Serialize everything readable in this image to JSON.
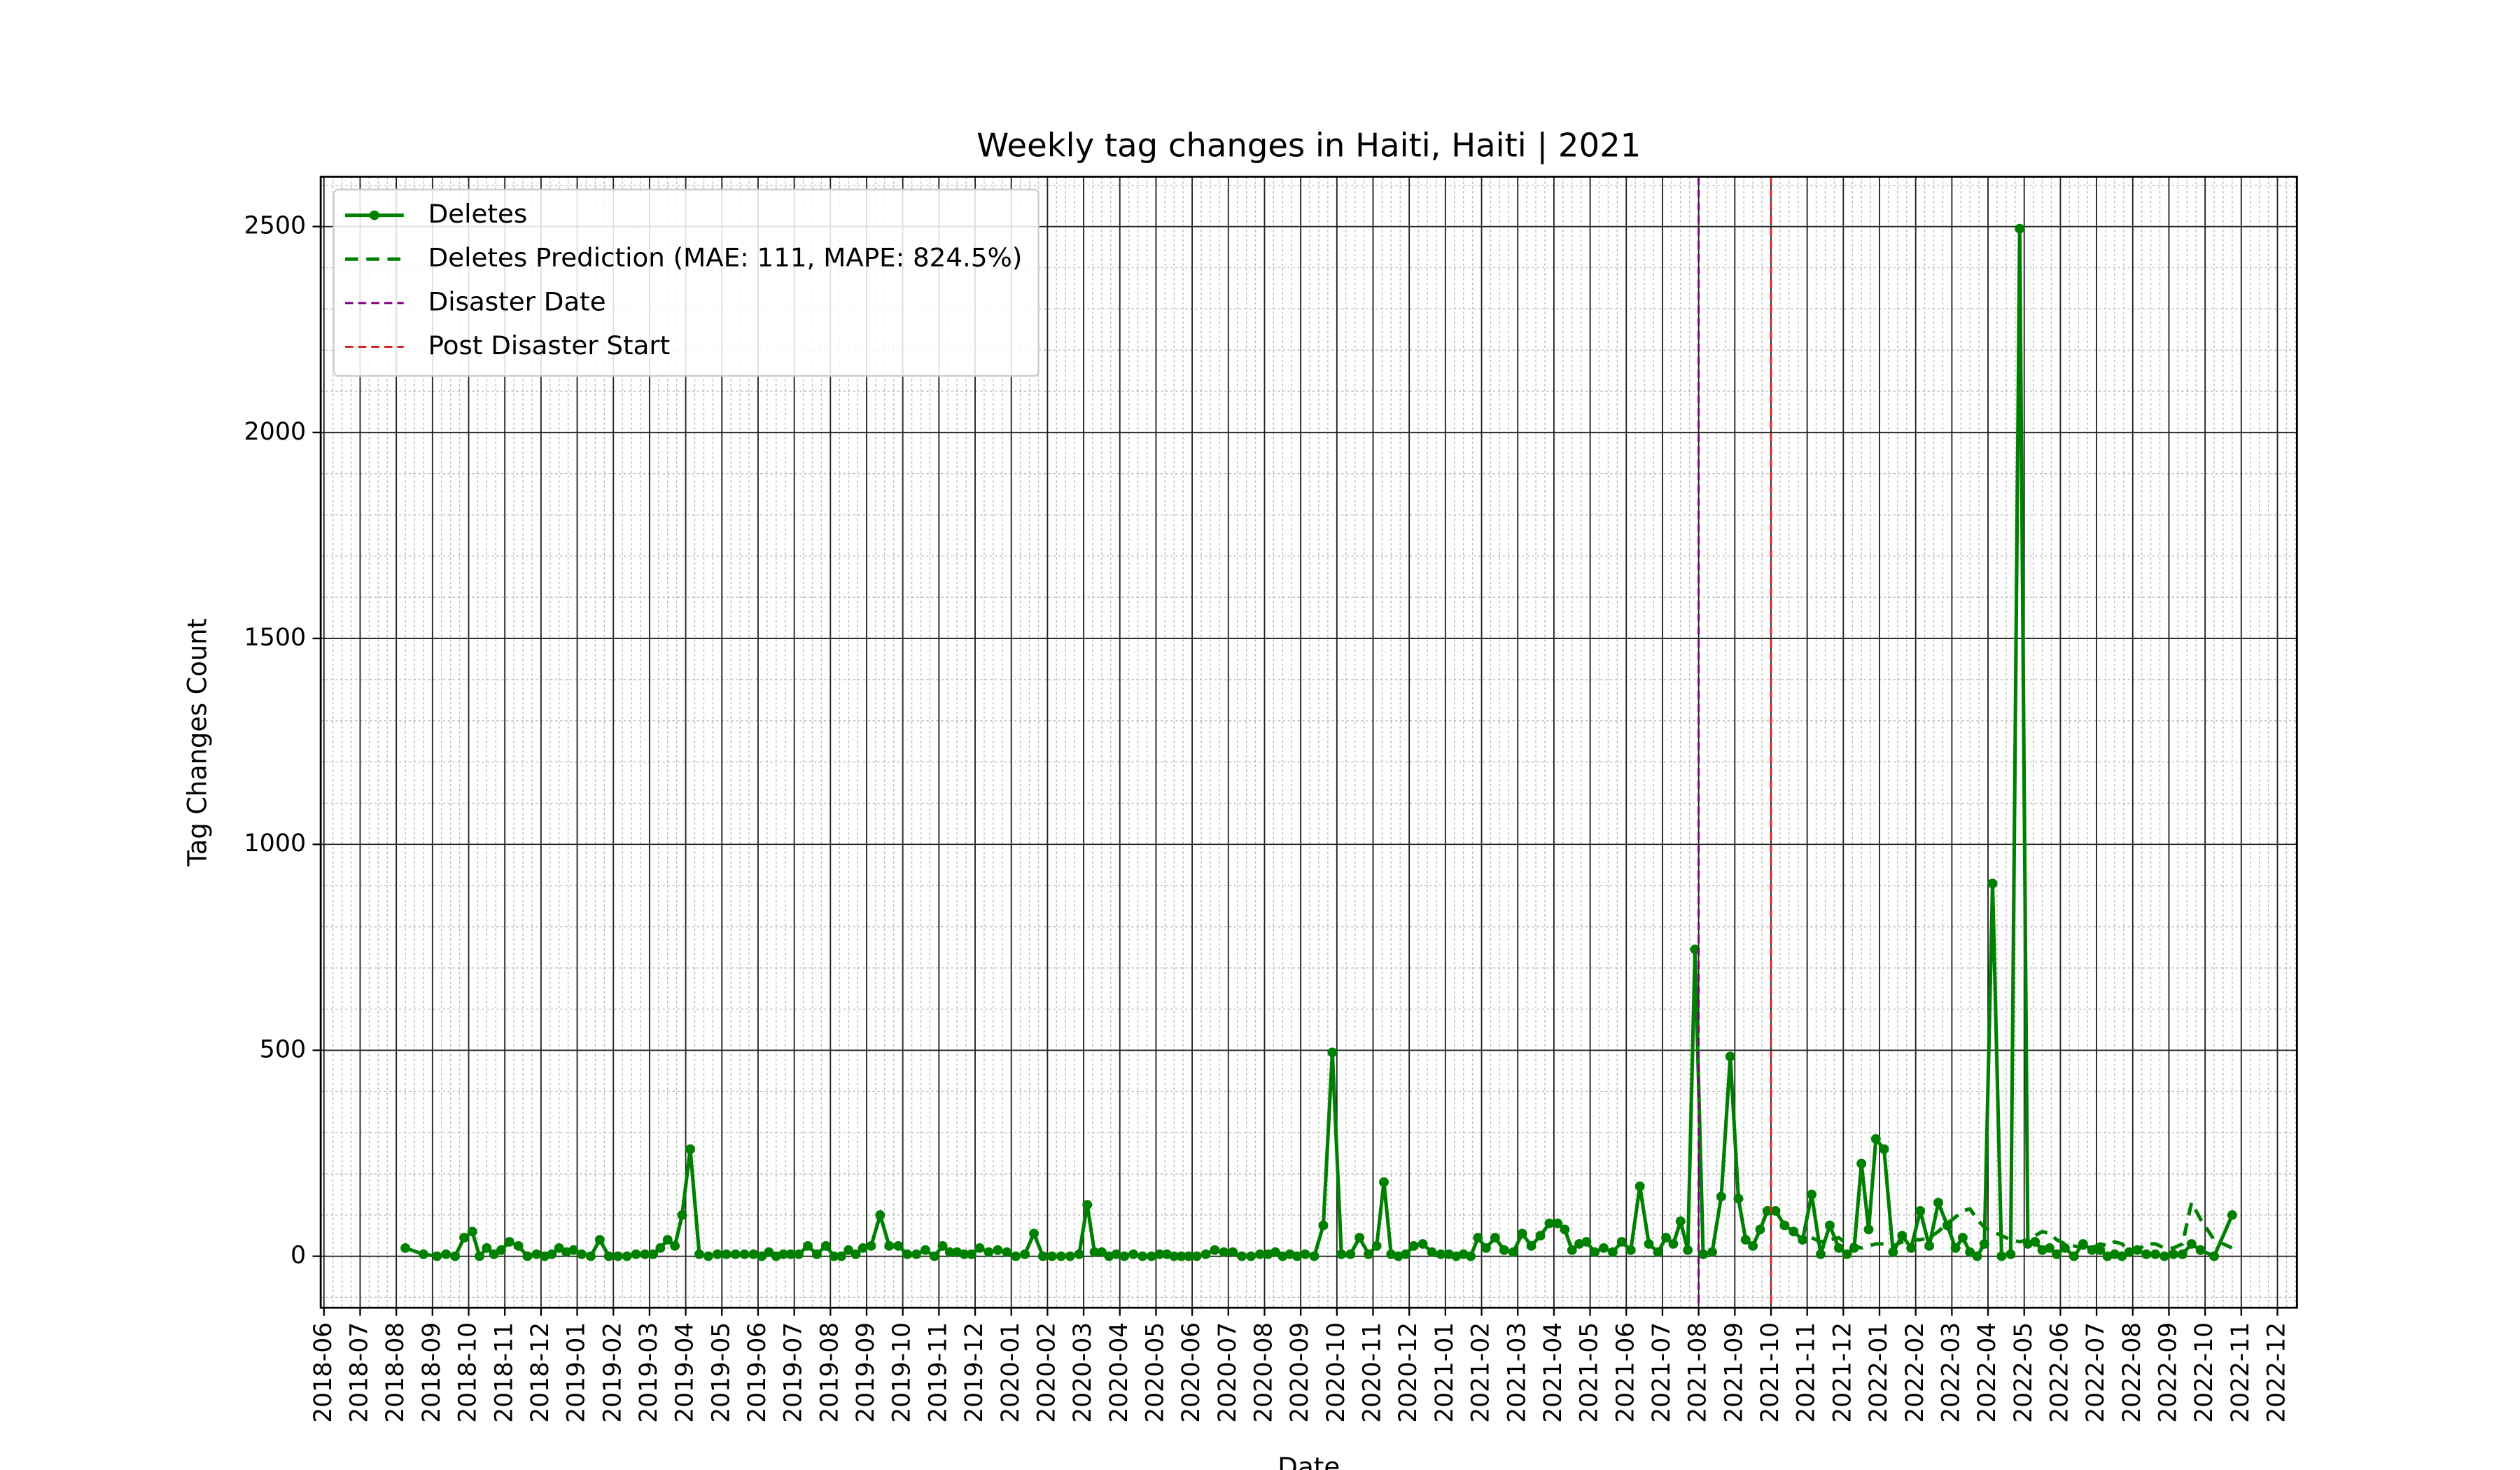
{
  "chart_data": {
    "type": "line",
    "title": "Weekly tag changes in Haiti, Haiti | 2021",
    "xlabel": "Date",
    "ylabel": "Tag Changes Count",
    "grid": true,
    "legend": "upper left",
    "ylim": [
      -125,
      2621
    ],
    "yticks": [
      0,
      500,
      1000,
      1500,
      2000,
      2500
    ],
    "xticks": [
      "2018-06",
      "2018-07",
      "2018-08",
      "2018-09",
      "2018-10",
      "2018-11",
      "2018-12",
      "2019-01",
      "2019-02",
      "2019-03",
      "2019-04",
      "2019-05",
      "2019-06",
      "2019-07",
      "2019-08",
      "2019-09",
      "2019-10",
      "2019-11",
      "2019-12",
      "2020-01",
      "2020-02",
      "2020-03",
      "2020-04",
      "2020-05",
      "2020-06",
      "2020-07",
      "2020-08",
      "2020-09",
      "2020-10",
      "2020-11",
      "2020-12",
      "2021-01",
      "2021-02",
      "2021-03",
      "2021-04",
      "2021-05",
      "2021-06",
      "2021-07",
      "2021-08",
      "2021-09",
      "2021-10",
      "2021-11",
      "2021-12",
      "2022-01",
      "2022-02",
      "2022-03",
      "2022-04",
      "2022-05",
      "2022-06",
      "2022-07",
      "2022-08",
      "2022-09",
      "2022-10",
      "2022-11",
      "2022-12"
    ],
    "x": [
      "2018-08",
      "2018-08",
      "2018-09",
      "2018-09",
      "2018-09",
      "2018-09",
      "2018-10",
      "2018-10",
      "2018-10",
      "2018-10",
      "2018-10",
      "2018-11",
      "2018-11",
      "2018-11",
      "2018-11",
      "2018-12",
      "2018-12",
      "2018-12",
      "2018-12",
      "2018-12",
      "2019-01",
      "2019-01",
      "2019-01",
      "2019-01",
      "2019-02",
      "2019-02",
      "2019-02",
      "2019-02",
      "2019-03",
      "2019-03",
      "2019-03",
      "2019-03",
      "2019-03",
      "2019-04",
      "2019-04",
      "2019-04",
      "2019-04",
      "2019-05",
      "2019-05",
      "2019-05",
      "2019-05",
      "2019-06",
      "2019-06",
      "2019-06",
      "2019-06",
      "2019-06",
      "2019-07",
      "2019-07",
      "2019-07",
      "2019-07",
      "2019-08",
      "2019-08",
      "2019-08",
      "2019-08",
      "2019-08",
      "2019-09",
      "2019-09",
      "2019-09",
      "2019-09",
      "2019-10",
      "2019-10",
      "2019-10",
      "2019-10",
      "2019-11",
      "2019-11",
      "2019-11",
      "2019-11",
      "2019-11",
      "2019-12",
      "2019-12",
      "2019-12",
      "2019-12",
      "2020-01",
      "2020-01",
      "2020-01",
      "2020-01",
      "2020-02",
      "2020-02",
      "2020-02",
      "2020-02",
      "2020-03",
      "2020-03",
      "2020-03",
      "2020-03",
      "2020-03",
      "2020-04",
      "2020-04",
      "2020-04",
      "2020-04",
      "2020-05",
      "2020-05",
      "2020-05",
      "2020-05",
      "2020-05",
      "2020-06",
      "2020-06",
      "2020-06",
      "2020-06",
      "2020-07",
      "2020-07",
      "2020-07",
      "2020-07",
      "2020-08",
      "2020-08",
      "2020-08",
      "2020-08",
      "2020-08",
      "2020-09",
      "2020-09",
      "2020-09",
      "2020-09",
      "2020-10",
      "2020-10",
      "2020-10",
      "2020-10",
      "2020-11",
      "2020-11",
      "2020-11",
      "2020-11",
      "2020-11",
      "2020-12",
      "2020-12",
      "2020-12",
      "2020-12",
      "2021-01",
      "2021-01",
      "2021-01",
      "2021-01",
      "2021-01",
      "2021-02",
      "2021-02",
      "2021-02",
      "2021-02",
      "2021-03",
      "2021-03",
      "2021-03",
      "2021-03",
      "2021-04",
      "2021-04",
      "2021-04",
      "2021-04",
      "2021-04",
      "2021-05",
      "2021-05",
      "2021-05",
      "2021-05",
      "2021-06",
      "2021-06",
      "2021-06",
      "2021-06",
      "2021-07",
      "2021-07",
      "2021-07",
      "2021-07",
      "2021-07",
      "2021-08",
      "2021-08",
      "2021-08",
      "2021-08",
      "2021-09",
      "2021-09",
      "2021-09",
      "2021-09",
      "2021-09",
      "2021-10",
      "2021-10",
      "2021-10",
      "2021-10",
      "2021-11",
      "2021-11",
      "2021-11",
      "2021-11",
      "2021-12",
      "2021-12",
      "2021-12",
      "2021-12",
      "2021-12",
      "2022-01",
      "2022-01",
      "2022-01",
      "2022-01",
      "2022-02",
      "2022-02",
      "2022-02",
      "2022-02",
      "2022-03",
      "2022-03",
      "2022-03",
      "2022-03",
      "2022-03",
      "2022-04",
      "2022-04",
      "2022-04",
      "2022-04",
      "2022-05",
      "2022-05",
      "2022-05",
      "2022-05",
      "2022-05",
      "2022-06",
      "2022-06",
      "2022-06",
      "2022-06",
      "2022-07",
      "2022-07",
      "2022-07",
      "2022-07",
      "2022-07",
      "2022-08",
      "2022-08",
      "2022-08",
      "2022-08",
      "2022-09",
      "2022-09",
      "2022-09",
      "2022-09",
      "2022-10",
      "2022-10"
    ],
    "series": [
      {
        "name": "Deletes",
        "color": "#008000",
        "linestyle": "solid",
        "marker": true,
        "values": [
          20,
          5,
          0,
          5,
          0,
          45,
          60,
          0,
          20,
          5,
          15,
          35,
          25,
          0,
          5,
          0,
          5,
          20,
          10,
          15,
          5,
          0,
          40,
          0,
          0,
          0,
          5,
          5,
          5,
          20,
          40,
          25,
          100,
          260,
          5,
          0,
          5,
          5,
          5,
          5,
          5,
          0,
          10,
          0,
          5,
          5,
          5,
          25,
          5,
          25,
          0,
          0,
          15,
          5,
          20,
          25,
          100,
          25,
          25,
          5,
          5,
          15,
          0,
          25,
          10,
          10,
          5,
          5,
          20,
          10,
          15,
          10,
          0,
          5,
          55,
          0,
          0,
          0,
          0,
          5,
          125,
          10,
          10,
          0,
          5,
          0,
          5,
          0,
          0,
          5,
          5,
          0,
          0,
          0,
          0,
          5,
          15,
          10,
          10,
          0,
          0,
          5,
          5,
          10,
          0,
          5,
          0,
          5,
          0,
          75,
          495,
          5,
          5,
          45,
          5,
          25,
          180,
          5,
          0,
          5,
          25,
          30,
          10,
          5,
          5,
          0,
          5,
          0,
          45,
          20,
          45,
          15,
          10,
          55,
          25,
          50,
          80,
          80,
          65,
          15,
          30,
          35,
          10,
          20,
          10,
          35,
          15,
          170,
          30,
          10,
          45,
          30,
          85,
          15,
          745,
          5,
          10,
          145,
          485,
          140,
          40,
          25,
          65,
          110,
          110,
          75,
          60,
          40,
          150,
          5,
          75,
          20,
          5,
          20,
          225,
          65,
          285,
          260,
          10,
          50,
          20,
          110,
          25,
          130,
          75,
          20,
          45,
          10,
          0,
          30,
          905,
          0,
          5,
          2495,
          30,
          35,
          15,
          20,
          5,
          20,
          0,
          30,
          15,
          15,
          0,
          5,
          0,
          10,
          15,
          5,
          5,
          0,
          5,
          5,
          30,
          15,
          0,
          100
        ]
      },
      {
        "name": "Deletes Prediction (MAE: 111, MAPE: 824.5%)",
        "color": "#008000",
        "linestyle": "dashed",
        "marker": false,
        "values": [
          null,
          null,
          null,
          null,
          null,
          null,
          null,
          null,
          null,
          null,
          null,
          null,
          null,
          null,
          null,
          null,
          null,
          null,
          null,
          null,
          null,
          null,
          null,
          null,
          null,
          null,
          null,
          null,
          null,
          null,
          null,
          null,
          null,
          null,
          null,
          null,
          null,
          null,
          null,
          null,
          null,
          null,
          null,
          null,
          null,
          null,
          null,
          null,
          null,
          null,
          null,
          null,
          null,
          null,
          null,
          null,
          null,
          null,
          null,
          null,
          null,
          null,
          null,
          null,
          null,
          null,
          null,
          null,
          null,
          null,
          null,
          null,
          null,
          null,
          null,
          null,
          null,
          null,
          null,
          null,
          null,
          null,
          null,
          null,
          null,
          null,
          null,
          null,
          null,
          null,
          null,
          null,
          null,
          null,
          null,
          null,
          null,
          null,
          null,
          null,
          null,
          null,
          null,
          null,
          null,
          null,
          null,
          null,
          null,
          null,
          null,
          null,
          null,
          null,
          null,
          null,
          null,
          null,
          null,
          null,
          null,
          null,
          null,
          null,
          null,
          null,
          null,
          null,
          null,
          null,
          null,
          null,
          null,
          null,
          null,
          null,
          null,
          null,
          null,
          null,
          null,
          null,
          null,
          null,
          null,
          null,
          null,
          null,
          null,
          null,
          null,
          null,
          null,
          null,
          null,
          null,
          null,
          null,
          null,
          null,
          null,
          null,
          null,
          null,
          null,
          null,
          null,
          null,
          45,
          35,
          40,
          45,
          30,
          25,
          20,
          25,
          30,
          30,
          25,
          35,
          40,
          40,
          45,
          60,
          80,
          95,
          110,
          115,
          90,
          70,
          60,
          50,
          40,
          35,
          40,
          50,
          60,
          55,
          40,
          30,
          25,
          20,
          20,
          30,
          25,
          35,
          30,
          15,
          15,
          30,
          30,
          20,
          20,
          30,
          130,
          90,
          40,
          20
        ]
      }
    ],
    "vlines": [
      {
        "name": "Disaster Date",
        "x": "2021-08",
        "color": "#800080"
      },
      {
        "name": "Post Disaster Start",
        "x": "2021-10",
        "color": "#d62728"
      }
    ]
  }
}
